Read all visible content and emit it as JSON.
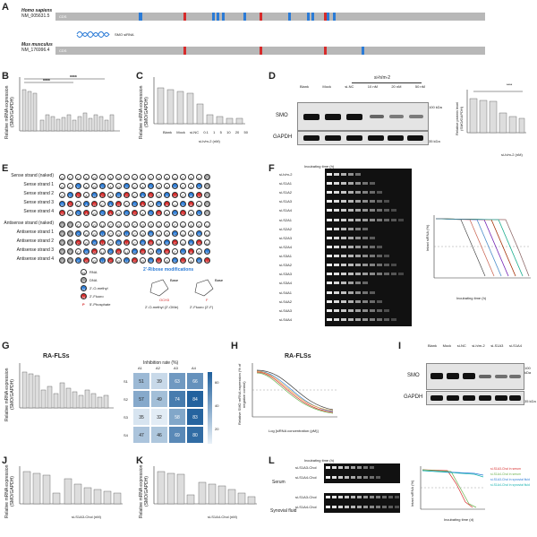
{
  "panels": {
    "A": {
      "letter": "A",
      "species_human": "Homo sapiens",
      "id_human": "NM_005631.5",
      "species_mouse": "Mus musculus",
      "id_mouse": "NM_176996.4",
      "cds": "CDS",
      "sirna_label": "SMO siRNA"
    },
    "B": {
      "letter": "B",
      "ylabel": "Relative mRNA expression (SMO/GAPDH)",
      "sig": "****"
    },
    "C": {
      "letter": "C",
      "ylabel": "Relative mRNA expression (SMO/GAPDH)",
      "xlabel": "si-h/m-2 (nM)",
      "categories": [
        "Blank",
        "Mock",
        "si-NC",
        "0.1",
        "1",
        "5",
        "10",
        "20",
        "50"
      ]
    },
    "D": {
      "letter": "D",
      "group_label": "si-h/m-2",
      "lanes": [
        "Blank",
        "Mock",
        "si-NC",
        "10 nM",
        "20 nM",
        "50 nM"
      ],
      "row1": "SMO",
      "row2": "GAPDH",
      "kda1": "100 kDa",
      "kda2": "35 kDa",
      "ylabel": "Relative protein level (SMO/GAPDH)",
      "xlabel": "si-h/m-2 (nM)",
      "sig": "****"
    },
    "E": {
      "letter": "E",
      "sense_rows": [
        "Sense strand (naked)",
        "Sense strand 1",
        "Sense strand 2",
        "Sense strand 3",
        "Sense strand 4"
      ],
      "antisense_rows": [
        "Antisense strand (naked)",
        "Antisense strand 1",
        "Antisense strand 2",
        "Antisense strand 3",
        "Antisense strand 4"
      ],
      "sense_seq": "GCCAGCAGCCACGAUCAUT",
      "antisense_seq": "TTCGGUCGUCGGUGCUAGU",
      "legend_title": "2'-Ribose modifications",
      "legend": [
        {
          "sym": "N",
          "text": "RNA"
        },
        {
          "sym": "N",
          "text": "DNA"
        },
        {
          "sym": "N",
          "text": "2'-O-methyl"
        },
        {
          "sym": "N",
          "text": "2'-Fluoro"
        },
        {
          "sym": "P",
          "text": "5'-Phosphate"
        }
      ],
      "ome": "2'-O-methyl (2'-OMe)",
      "fluoro": "2'-Fluoro (2'-F)",
      "base": "Base"
    },
    "F": {
      "letter": "F",
      "time_header": "Incubating time (h)",
      "rows": [
        "si-h/m-2",
        "si-S1A1",
        "si-S1A2",
        "si-S1A3",
        "si-S1A4",
        "si-S2A1",
        "si-S2A2",
        "si-S2A3",
        "si-S2A4",
        "si-S3A1",
        "si-S3A2",
        "si-S3A3",
        "si-S3A4",
        "si-S4A1",
        "si-S4A2",
        "si-S4A3",
        "si-S4A4"
      ],
      "xlabel": "Incubating time (h)",
      "ylabel": "Intact siRNA (%)",
      "xticks": [
        "0",
        "0.25",
        "0.5",
        "0.75",
        "1",
        "2",
        "4",
        "8",
        "12",
        "24",
        "48",
        "72"
      ]
    },
    "G": {
      "letter": "G",
      "title": "RA-FLSs",
      "ylabel": "Relative mRNA expression (SMO/GAPDH)",
      "heat_title": "Inhibition rate (%)",
      "cols": [
        "A1",
        "A2",
        "A3",
        "A4"
      ],
      "rows": [
        "S1",
        "S2",
        "S3",
        "S4"
      ],
      "values": [
        [
          51,
          39,
          63,
          66
        ],
        [
          57,
          49,
          74,
          84
        ],
        [
          35,
          32,
          58,
          83
        ],
        [
          47,
          46,
          69,
          80
        ]
      ],
      "scale": [
        "60",
        "40",
        "20"
      ]
    },
    "H": {
      "letter": "H",
      "title": "RA-FLSs",
      "ylabel": "Relative SMO mRNA expression (% of negative control)",
      "xlabel": "Log [siRNA concentration (pM)]"
    },
    "I": {
      "letter": "I",
      "lanes": [
        "Blank",
        "Mock",
        "si-NC",
        "si-h/m-2",
        "si-S1A3",
        "si-S1A4"
      ],
      "row1": "SMO",
      "row2": "GAPDH",
      "kda1": "100 kDa",
      "kda2": "35 kDa"
    },
    "J": {
      "letter": "J",
      "ylabel": "Relative mRNA expression (SMO/GAPDH)",
      "xlabel": "si-S1A3-Chol (nM)"
    },
    "K": {
      "letter": "K",
      "ylabel": "Relative mRNA expression (SMO/GAPDH)",
      "xlabel": "si-S1A4-Chol (nM)"
    },
    "L": {
      "letter": "L",
      "time_header": "Incubating time (h)",
      "serum": "Serum",
      "synovial": "Synovial fluid",
      "rows": [
        "si-S1A3-Chol",
        "si-S1A4-Chol",
        "si-S1A3-Chol",
        "si-S1A4-Chol"
      ],
      "xlabel": "Incubating time (d)",
      "ylabel": "Intact siRNA (%)",
      "legend": [
        "si-S1A3-Chol in serum",
        "si-S1A4-Chol in serum",
        "si-S1A3-Chol in synovial fluid",
        "si-S1A4-Chol in synovial fluid"
      ]
    }
  },
  "colors": {
    "blue": "#2b7bd6",
    "red": "#d62b2b",
    "gray": "#9e9e9e",
    "heat_low": "#e9f1f8",
    "heat_high": "#1f5f9c"
  }
}
